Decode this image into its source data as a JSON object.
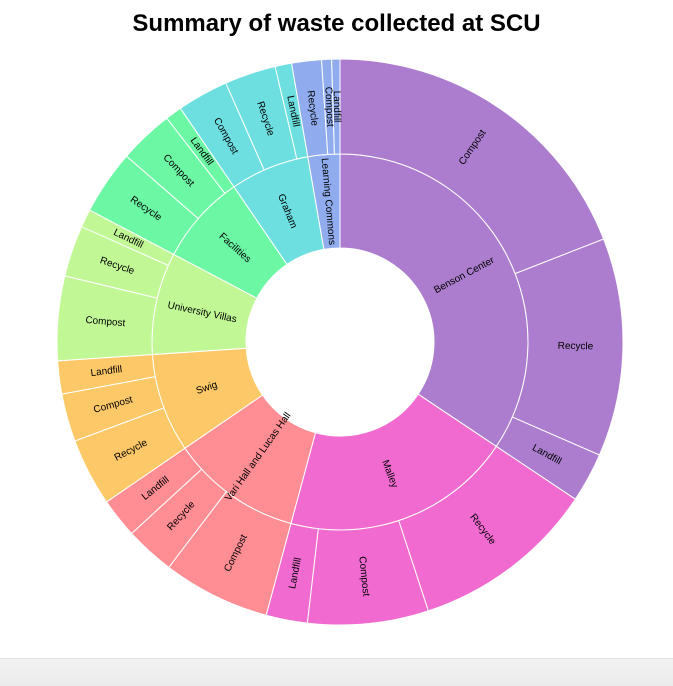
{
  "chart_data": {
    "type": "sunburst",
    "title": "Summary of waste collected at SCU",
    "colors": {
      "Benson Center": "#ac7dce",
      "Malley": "#f06ad0",
      "Vari Hall and Lucas Hall": "#ff8d94",
      "Swig": "#fdc867",
      "University Villas": "#c1f895",
      "Facilities": "#6cf7a4",
      "Graham": "#6ddfe0",
      "Learning Commons": "#90acef"
    },
    "children": [
      {
        "name": "Benson Center",
        "children": [
          {
            "name": "Compost",
            "value": 20.2
          },
          {
            "name": "Recycle",
            "value": 13.2
          },
          {
            "name": "Landfill",
            "value": 3.0
          }
        ]
      },
      {
        "name": "Malley",
        "children": [
          {
            "name": "Recycle",
            "value": 11.2
          },
          {
            "name": "Compost",
            "value": 7.3
          },
          {
            "name": "Landfill",
            "value": 2.5
          }
        ]
      },
      {
        "name": "Vari Hall and Lucas Hall",
        "children": [
          {
            "name": "Compost",
            "value": 6.5
          },
          {
            "name": "Recycle",
            "value": 3.0
          },
          {
            "name": "Landfill",
            "value": 2.4
          }
        ]
      },
      {
        "name": "Swig",
        "children": [
          {
            "name": "Recycle",
            "value": 4.1
          },
          {
            "name": "Compost",
            "value": 2.9
          },
          {
            "name": "Landfill",
            "value": 2.0
          }
        ]
      },
      {
        "name": "University Villas",
        "children": [
          {
            "name": "Compost",
            "value": 5.1
          },
          {
            "name": "Recycle",
            "value": 3.1
          },
          {
            "name": "Landfill",
            "value": 1.1
          }
        ]
      },
      {
        "name": "Facilities",
        "children": [
          {
            "name": "Recycle",
            "value": 3.9
          },
          {
            "name": "Compost",
            "value": 3.3
          },
          {
            "name": "Landfill",
            "value": 1.0
          }
        ]
      },
      {
        "name": "Graham",
        "children": [
          {
            "name": "Compost",
            "value": 3.1
          },
          {
            "name": "Recycle",
            "value": 3.1
          },
          {
            "name": "Landfill",
            "value": 1.0
          }
        ]
      },
      {
        "name": "Learning Commons",
        "children": [
          {
            "name": "Recycle",
            "value": 1.8
          },
          {
            "name": "Compost",
            "value": 0.6
          },
          {
            "name": "Landfill",
            "value": 0.5
          }
        ]
      }
    ]
  }
}
